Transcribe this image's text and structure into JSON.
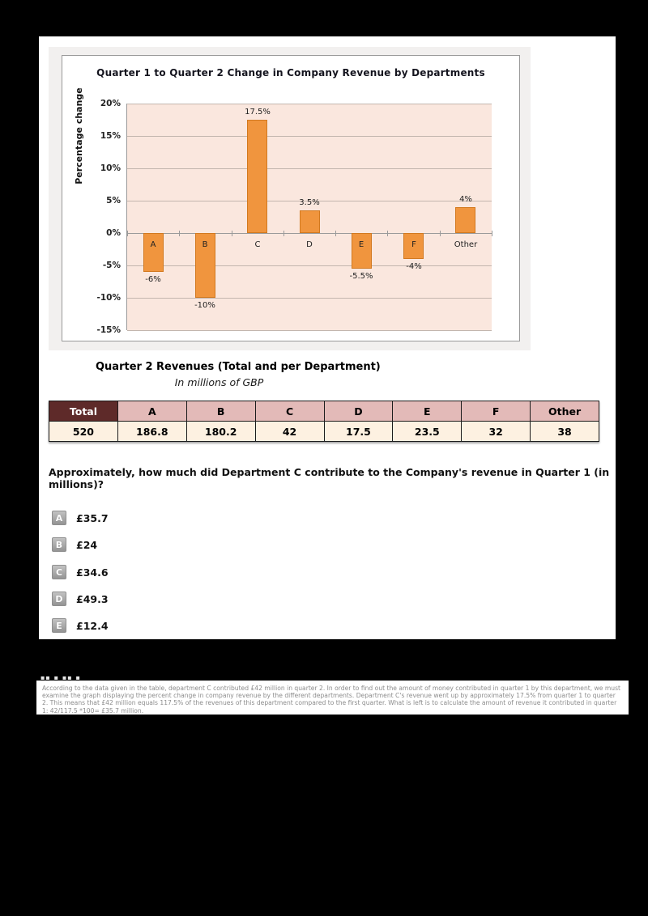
{
  "chart_data": {
    "type": "bar",
    "title": "Quarter 1 to Quarter 2 Change in Company Revenue by Departments",
    "xlabel": "",
    "ylabel": "Percentage change",
    "categories": [
      "A",
      "B",
      "C",
      "D",
      "E",
      "F",
      "Other"
    ],
    "values": [
      -6,
      -10,
      17.5,
      3.5,
      -5.5,
      -4,
      4
    ],
    "value_labels": [
      "-6%",
      "-10%",
      "17.5%",
      "3.5%",
      "-5.5%",
      "-4%",
      "4%"
    ],
    "ylim": [
      -15,
      20
    ],
    "ytick_step": 5,
    "ytick_labels": [
      "20%",
      "15%",
      "10%",
      "5%",
      "0%",
      "-5%",
      "-10%",
      "-15%"
    ],
    "grid": true,
    "legend": "none",
    "bar_color": "#F0953E",
    "bar_border_color": "#D2791F",
    "plot_background": "#FAE7DE"
  },
  "revenue_table": {
    "title": "Quarter 2 Revenues (Total and per Department)",
    "subtitle": "In millions of GBP",
    "headers": [
      "Total",
      "A",
      "B",
      "C",
      "D",
      "E",
      "F",
      "Other"
    ],
    "values": [
      "520",
      "186.8",
      "180.2",
      "42",
      "17.5",
      "23.5",
      "32",
      "38"
    ]
  },
  "question": {
    "text": "Approximately, how much did Department C contribute to the Company's revenue in Quarter 1 (in millions)?",
    "options": [
      {
        "letter": "A",
        "value": "£35.7"
      },
      {
        "letter": "B",
        "value": "£24"
      },
      {
        "letter": "C",
        "value": "£34.6"
      },
      {
        "letter": "D",
        "value": "£49.3"
      },
      {
        "letter": "E",
        "value": "£12.4"
      }
    ]
  },
  "explanation": {
    "clipped_fragment": "▪▪ ▪ ▪▪ ▪ ▪▪",
    "text": "According to the data given in the table, department C contributed £42 million in quarter 2. In order to find out the amount of money contributed in quarter 1 by this department, we must examine the graph displaying the percent change in company revenue by the different departments. Department C's revenue went up by approximately 17.5% from quarter 1 to quarter 2. This means that £42 million equals 117.5% of the revenues of this department compared to the first quarter. What is left is to calculate the amount of revenue it contributed in quarter 1: 42/117.5 *100= £35.7 million."
  },
  "colors": {
    "page_background": "#000000",
    "panel_background": "#FFFFFF",
    "chart_container_background": "#F2F0EF",
    "table_header_pink": "#E3BAB8",
    "table_header_maroon": "#5E2A29",
    "table_value_cream": "#FDF1E1"
  }
}
